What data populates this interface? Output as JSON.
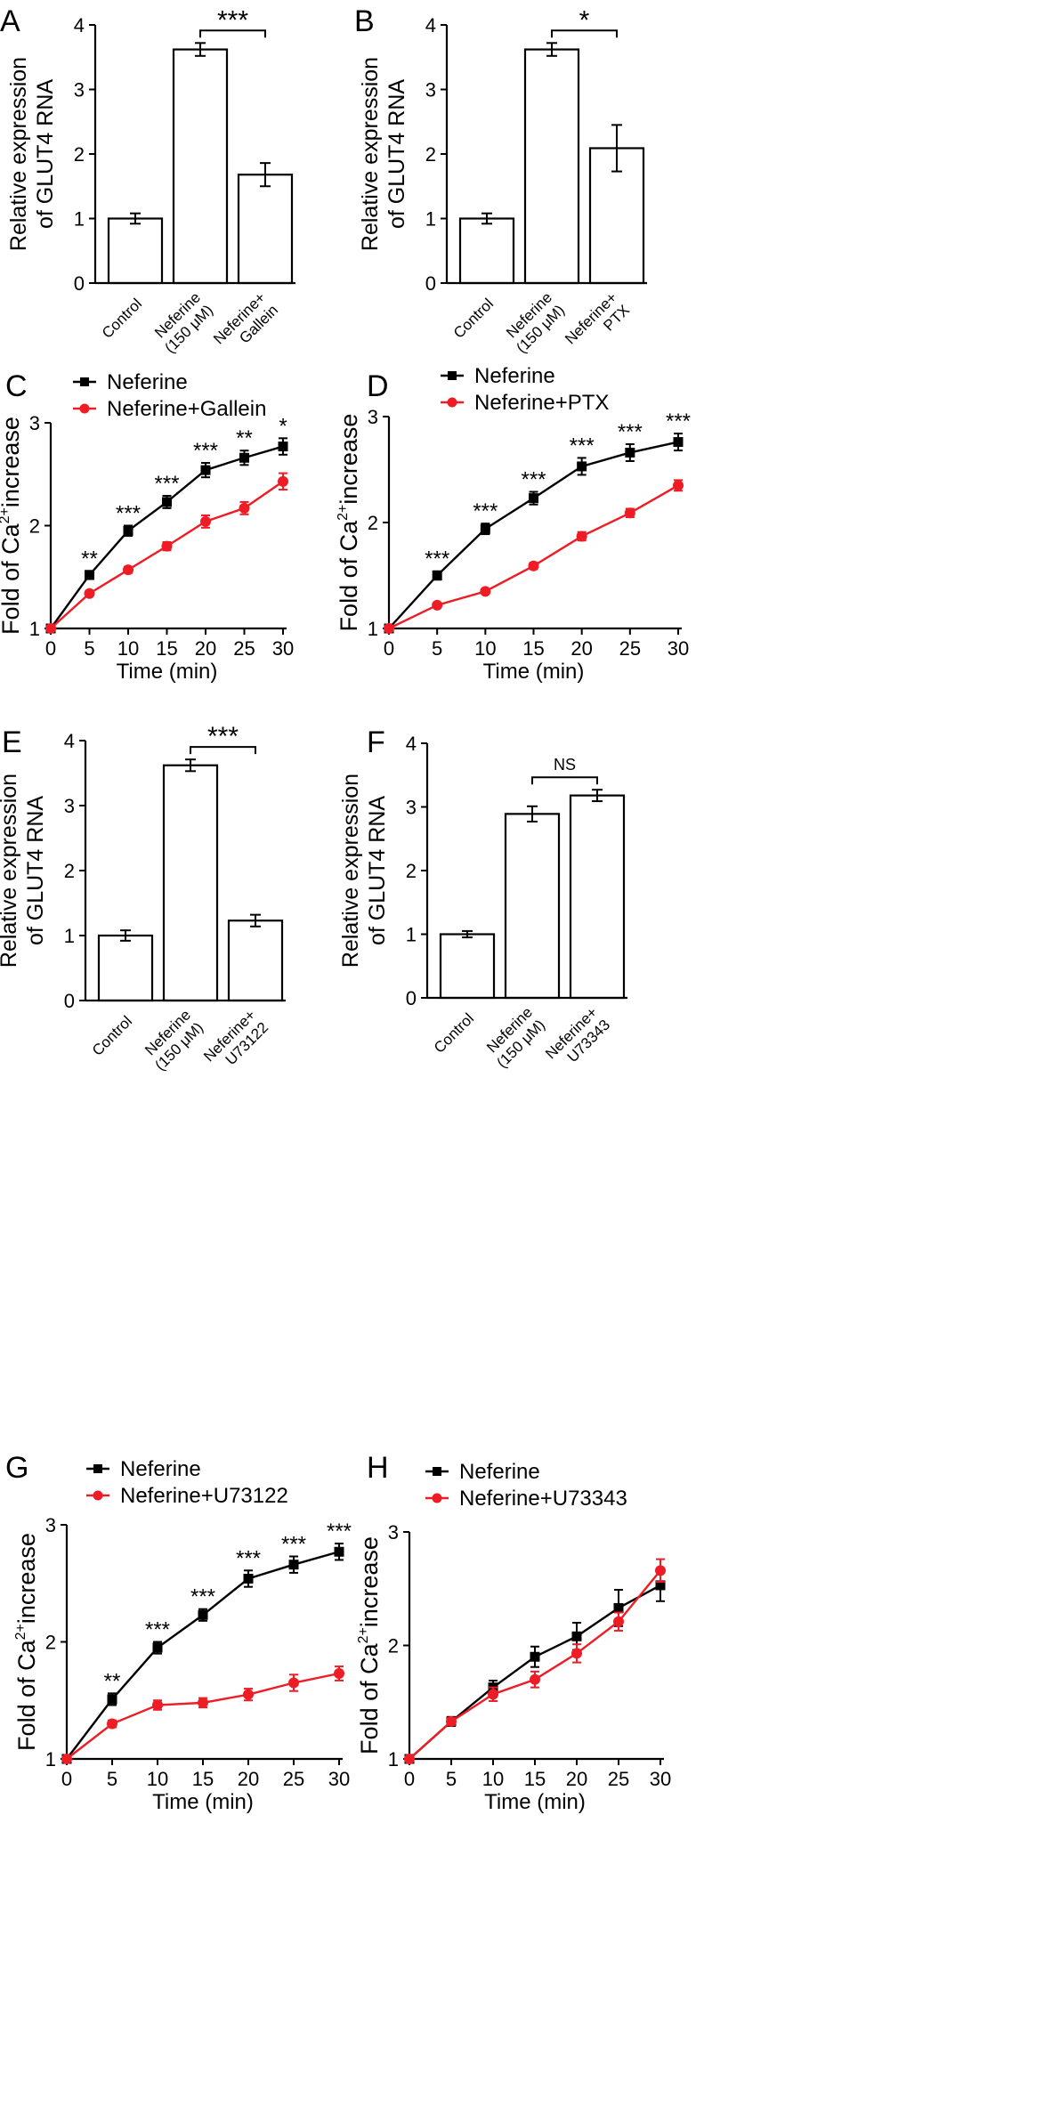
{
  "figure": {
    "panels": [
      "A",
      "B",
      "C",
      "D",
      "E",
      "F",
      "G",
      "H"
    ]
  },
  "colors": {
    "black": "#000000",
    "red": "#ee1c24"
  },
  "chart_data": [
    {
      "panel": "A",
      "type": "bar",
      "ylabel": "Relative expression of GLUT4 RNA",
      "ylabel_lines": [
        "Relative expression",
        "of GLUT4 RNA"
      ],
      "categories": [
        [
          "Control"
        ],
        [
          "Neferine",
          "(150 μM)"
        ],
        [
          "Neferine+",
          "Gallein"
        ]
      ],
      "values": [
        1.0,
        3.62,
        1.68
      ],
      "errors": [
        0.08,
        0.1,
        0.18
      ],
      "ylim": [
        0,
        4
      ],
      "yticks": [
        "0",
        "1",
        "2",
        "3",
        "4"
      ],
      "significance": {
        "from": 1,
        "to": 2,
        "label": "***"
      }
    },
    {
      "panel": "B",
      "type": "bar",
      "ylabel": "Relative expression of GLUT4 RNA",
      "ylabel_lines": [
        "Relative expression",
        "of GLUT4 RNA"
      ],
      "categories": [
        [
          "Control"
        ],
        [
          "Neferine",
          "(150 μM)"
        ],
        [
          "Neferine+",
          "PTX"
        ]
      ],
      "values": [
        1.0,
        3.62,
        2.09
      ],
      "errors": [
        0.08,
        0.1,
        0.36
      ],
      "ylim": [
        0,
        4
      ],
      "yticks": [
        "0",
        "1",
        "2",
        "3",
        "4"
      ],
      "significance": {
        "from": 1,
        "to": 2,
        "label": "*"
      }
    },
    {
      "panel": "C",
      "type": "line",
      "xlabel": "Time (min)",
      "ylabel": "Fold of Ca2+ increase",
      "ylabel_parts": [
        "Fold of Ca",
        "2+",
        "increase"
      ],
      "x": [
        0,
        5,
        10,
        15,
        20,
        25,
        30
      ],
      "xlim": [
        0,
        30
      ],
      "ylim": [
        1,
        3
      ],
      "xticks": [
        "0",
        "5",
        "10",
        "15",
        "20",
        "25",
        "30"
      ],
      "yticks": [
        "1",
        "2",
        "3"
      ],
      "series": [
        {
          "name": "Neferine",
          "color": "#000000",
          "marker": "square",
          "values": [
            1.0,
            1.52,
            1.95,
            2.23,
            2.54,
            2.66,
            2.77
          ],
          "errors": [
            0,
            0.04,
            0.05,
            0.06,
            0.07,
            0.07,
            0.08
          ]
        },
        {
          "name": "Neferine+Gallein",
          "color": "#ee1c24",
          "marker": "circle",
          "values": [
            1.0,
            1.34,
            1.57,
            1.8,
            2.04,
            2.17,
            2.43
          ],
          "errors": [
            0,
            0.02,
            0.03,
            0.04,
            0.06,
            0.06,
            0.08
          ]
        }
      ],
      "annotations": [
        "",
        "**",
        "***",
        "***",
        "***",
        "**",
        "*"
      ]
    },
    {
      "panel": "D",
      "type": "line",
      "xlabel": "Time (min)",
      "ylabel": "Fold of Ca2+ increase",
      "ylabel_parts": [
        "Fold of Ca",
        "2+",
        "increase"
      ],
      "x": [
        0,
        5,
        10,
        15,
        20,
        25,
        30
      ],
      "xlim": [
        0,
        30
      ],
      "ylim": [
        1,
        3
      ],
      "xticks": [
        "0",
        "5",
        "10",
        "15",
        "20",
        "25",
        "30"
      ],
      "yticks": [
        "1",
        "2",
        "3"
      ],
      "series": [
        {
          "name": "Neferine",
          "color": "#000000",
          "marker": "square",
          "values": [
            1.0,
            1.5,
            1.94,
            2.23,
            2.53,
            2.66,
            2.76
          ],
          "errors": [
            0,
            0.04,
            0.05,
            0.06,
            0.08,
            0.08,
            0.08
          ]
        },
        {
          "name": "Neferine+PTX",
          "color": "#ee1c24",
          "marker": "circle",
          "values": [
            1.0,
            1.22,
            1.35,
            1.59,
            1.87,
            2.09,
            2.35
          ],
          "errors": [
            0,
            0.02,
            0.02,
            0.03,
            0.04,
            0.04,
            0.05
          ]
        }
      ],
      "annotations": [
        "",
        "***",
        "***",
        "***",
        "***",
        "***",
        "***"
      ]
    },
    {
      "panel": "E",
      "type": "bar",
      "ylabel": "Relative expression of GLUT4 RNA",
      "ylabel_lines": [
        "Relative expression",
        "of GLUT4 RNA"
      ],
      "categories": [
        [
          "Control"
        ],
        [
          "Neferine",
          "(150 μM)"
        ],
        [
          "Neferine+",
          "U73122"
        ]
      ],
      "values": [
        1.0,
        3.62,
        1.23
      ],
      "errors": [
        0.08,
        0.09,
        0.09
      ],
      "ylim": [
        0,
        4
      ],
      "yticks": [
        "0",
        "1",
        "2",
        "3",
        "4"
      ],
      "significance": {
        "from": 1,
        "to": 2,
        "label": "***"
      }
    },
    {
      "panel": "F",
      "type": "bar",
      "ylabel": "Relative expression of GLUT4 RNA",
      "ylabel_lines": [
        "Relative expression",
        "of GLUT4 RNA"
      ],
      "categories": [
        [
          "Control"
        ],
        [
          "Neferine",
          "(150 μM)"
        ],
        [
          "Neferine+",
          "U73343"
        ]
      ],
      "values": [
        1.0,
        2.89,
        3.18
      ],
      "errors": [
        0.05,
        0.12,
        0.09
      ],
      "ylim": [
        0,
        4
      ],
      "yticks": [
        "0",
        "1",
        "2",
        "3",
        "4"
      ],
      "significance": {
        "from": 1,
        "to": 2,
        "label": "NS"
      }
    },
    {
      "panel": "G",
      "type": "line",
      "xlabel": "Time (min)",
      "ylabel": "Fold of Ca2+ increase",
      "ylabel_parts": [
        "Fold of Ca",
        "2+",
        "increase"
      ],
      "x": [
        0,
        5,
        10,
        15,
        20,
        25,
        30
      ],
      "xlim": [
        0,
        30
      ],
      "ylim": [
        1,
        3
      ],
      "xticks": [
        "0",
        "5",
        "10",
        "15",
        "20",
        "25",
        "30"
      ],
      "yticks": [
        "1",
        "2",
        "3"
      ],
      "series": [
        {
          "name": "Neferine",
          "color": "#000000",
          "marker": "square",
          "values": [
            1.0,
            1.51,
            1.95,
            2.23,
            2.54,
            2.66,
            2.77
          ],
          "errors": [
            0,
            0.05,
            0.05,
            0.05,
            0.07,
            0.07,
            0.07
          ]
        },
        {
          "name": "Neferine+U73122",
          "color": "#ee1c24",
          "marker": "circle",
          "values": [
            1.0,
            1.3,
            1.46,
            1.48,
            1.55,
            1.65,
            1.73
          ],
          "errors": [
            0,
            0.03,
            0.04,
            0.04,
            0.05,
            0.07,
            0.06
          ]
        }
      ],
      "annotations": [
        "",
        "**",
        "***",
        "***",
        "***",
        "***",
        "***"
      ]
    },
    {
      "panel": "H",
      "type": "line",
      "xlabel": "Time (min)",
      "ylabel": "Fold of Ca2+ increase",
      "ylabel_parts": [
        "Fold of Ca",
        "2+",
        "increase"
      ],
      "x": [
        0,
        5,
        10,
        15,
        20,
        25,
        30
      ],
      "xlim": [
        0,
        30
      ],
      "ylim": [
        1,
        3
      ],
      "xticks": [
        "0",
        "5",
        "10",
        "15",
        "20",
        "25",
        "30"
      ],
      "yticks": [
        "1",
        "2",
        "3"
      ],
      "series": [
        {
          "name": "Neferine",
          "color": "#000000",
          "marker": "square",
          "values": [
            1.0,
            1.33,
            1.63,
            1.9,
            2.08,
            2.33,
            2.53
          ],
          "errors": [
            0,
            0.04,
            0.06,
            0.09,
            0.12,
            0.16,
            0.14
          ]
        },
        {
          "name": "Neferine+U73343",
          "color": "#ee1c24",
          "marker": "circle",
          "values": [
            1.0,
            1.33,
            1.57,
            1.7,
            1.93,
            2.21,
            2.66
          ],
          "errors": [
            0,
            0.03,
            0.06,
            0.07,
            0.08,
            0.08,
            0.1
          ]
        }
      ],
      "annotations": [
        "",
        "",
        "",
        "",
        "",
        "",
        ""
      ]
    }
  ]
}
